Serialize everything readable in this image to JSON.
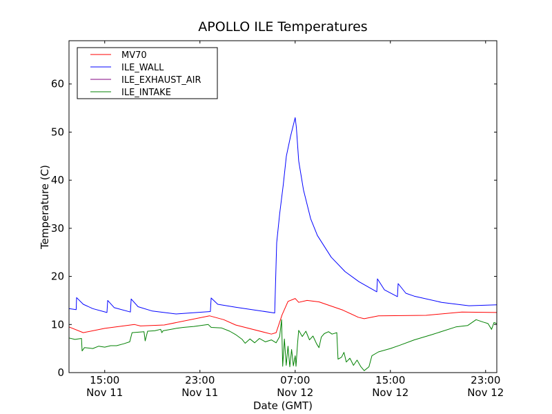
{
  "chart_data": {
    "type": "line",
    "title": "APOLLO ILE Temperatures",
    "xlabel": "Date (GMT)",
    "ylabel": "Temperature (C)",
    "x_units": "hours since Nov 11 00:00 GMT",
    "xlim": [
      12.0,
      47.94
    ],
    "ylim": [
      0,
      69
    ],
    "grid": false,
    "legend_placement": "top-left",
    "xticks": [
      {
        "value": 15,
        "label1": "15:00",
        "label2": "Nov 11"
      },
      {
        "value": 23,
        "label1": "23:00",
        "label2": "Nov 11"
      },
      {
        "value": 31,
        "label1": "07:00",
        "label2": "Nov 12"
      },
      {
        "value": 39,
        "label1": "15:00",
        "label2": "Nov 12"
      },
      {
        "value": 47,
        "label1": "23:00",
        "label2": "Nov 12"
      }
    ],
    "yticks": [
      {
        "value": 0,
        "label": "0"
      },
      {
        "value": 10,
        "label": "10"
      },
      {
        "value": 20,
        "label": "20"
      },
      {
        "value": 30,
        "label": "30"
      },
      {
        "value": 40,
        "label": "40"
      },
      {
        "value": 50,
        "label": "50"
      },
      {
        "value": 60,
        "label": "60"
      }
    ],
    "series": [
      {
        "name": "MV70",
        "color": "#ff0000",
        "points": [
          [
            12.0,
            9.5
          ],
          [
            13.2,
            8.3
          ],
          [
            15,
            9.2
          ],
          [
            17.5,
            10.0
          ],
          [
            18,
            9.7
          ],
          [
            20,
            9.9
          ],
          [
            23.8,
            11.8
          ],
          [
            25,
            11.0
          ],
          [
            26,
            9.9
          ],
          [
            29,
            8.0
          ],
          [
            29.4,
            8.3
          ],
          [
            29.9,
            12.0
          ],
          [
            30.4,
            14.8
          ],
          [
            31,
            15.4
          ],
          [
            31.3,
            14.6
          ],
          [
            32,
            15.0
          ],
          [
            33,
            14.7
          ],
          [
            35,
            13.0
          ],
          [
            36.3,
            11.5
          ],
          [
            36.8,
            11.2
          ],
          [
            38,
            11.8
          ],
          [
            42,
            11.9
          ],
          [
            45,
            12.6
          ],
          [
            47.94,
            12.5
          ]
        ]
      },
      {
        "name": "ILE_WALL",
        "color": "#0000ff",
        "points": [
          [
            12.0,
            13.3
          ],
          [
            12.6,
            13.1
          ],
          [
            12.64,
            15.6
          ],
          [
            13.2,
            14.2
          ],
          [
            14,
            13.3
          ],
          [
            15.19,
            12.5
          ],
          [
            15.25,
            15.0
          ],
          [
            15.8,
            13.5
          ],
          [
            17.16,
            12.6
          ],
          [
            17.22,
            15.3
          ],
          [
            17.8,
            13.7
          ],
          [
            19,
            12.8
          ],
          [
            21,
            12.2
          ],
          [
            23.88,
            12.7
          ],
          [
            23.94,
            15.5
          ],
          [
            24.5,
            14.2
          ],
          [
            26,
            13.6
          ],
          [
            29.28,
            12.4
          ],
          [
            29.45,
            27
          ],
          [
            29.7,
            33
          ],
          [
            30.0,
            39
          ],
          [
            30.26,
            45
          ],
          [
            30.6,
            49
          ],
          [
            31.0,
            53
          ],
          [
            31.1,
            51
          ],
          [
            31.3,
            44
          ],
          [
            31.7,
            38
          ],
          [
            32.3,
            32
          ],
          [
            32.87,
            28.5
          ],
          [
            34.03,
            24
          ],
          [
            35.19,
            21
          ],
          [
            36.35,
            18.9
          ],
          [
            37.86,
            16.8
          ],
          [
            37.91,
            19.5
          ],
          [
            38.5,
            17.2
          ],
          [
            39.59,
            15.8
          ],
          [
            39.65,
            18.5
          ],
          [
            40.3,
            16.5
          ],
          [
            41,
            15.9
          ],
          [
            43.3,
            14.6
          ],
          [
            45.6,
            13.9
          ],
          [
            47.94,
            14.1
          ]
        ]
      },
      {
        "name": "ILE_EXHAUST_AIR",
        "color": "#800080",
        "points": []
      },
      {
        "name": "ILE_INTAKE",
        "color": "#008000",
        "points": [
          [
            12.0,
            7.2
          ],
          [
            12.5,
            6.9
          ],
          [
            13.05,
            7.1
          ],
          [
            13.1,
            4.5
          ],
          [
            13.3,
            5.2
          ],
          [
            14,
            5.0
          ],
          [
            14.5,
            5.5
          ],
          [
            15,
            5.3
          ],
          [
            15.5,
            5.6
          ],
          [
            16,
            5.6
          ],
          [
            16.6,
            6.0
          ],
          [
            17.1,
            6.4
          ],
          [
            17.3,
            8.3
          ],
          [
            18.3,
            8.5
          ],
          [
            18.4,
            6.6
          ],
          [
            18.6,
            8.6
          ],
          [
            19.2,
            8.7
          ],
          [
            19.7,
            9.0
          ],
          [
            19.8,
            8.3
          ],
          [
            19.9,
            8.7
          ],
          [
            21,
            9.2
          ],
          [
            21.6,
            9.4
          ],
          [
            22.5,
            9.6
          ],
          [
            23.7,
            10.0
          ],
          [
            23.95,
            9.4
          ],
          [
            24.8,
            9.3
          ],
          [
            25.5,
            8.6
          ],
          [
            26.0,
            7.9
          ],
          [
            26.55,
            6.9
          ],
          [
            26.8,
            6.1
          ],
          [
            27.2,
            7.0
          ],
          [
            27.6,
            6.2
          ],
          [
            28.0,
            7.1
          ],
          [
            28.5,
            6.4
          ],
          [
            29.0,
            6.8
          ],
          [
            29.4,
            6.2
          ],
          [
            29.7,
            7.5
          ],
          [
            29.86,
            11.0
          ],
          [
            29.95,
            1.3
          ],
          [
            30.1,
            7.0
          ],
          [
            30.25,
            1.5
          ],
          [
            30.4,
            5.5
          ],
          [
            30.55,
            1.2
          ],
          [
            30.7,
            4.8
          ],
          [
            30.85,
            1.4
          ],
          [
            31.0,
            3.5
          ],
          [
            31.07,
            1.3
          ],
          [
            31.2,
            6.0
          ],
          [
            31.3,
            8.8
          ],
          [
            31.6,
            7.5
          ],
          [
            31.9,
            8.6
          ],
          [
            32.2,
            6.8
          ],
          [
            32.5,
            7.6
          ],
          [
            32.8,
            6.0
          ],
          [
            33.0,
            5.2
          ],
          [
            33.2,
            7.4
          ],
          [
            33.45,
            8.1
          ],
          [
            33.8,
            8.5
          ],
          [
            34.1,
            8.0
          ],
          [
            34.5,
            8.3
          ],
          [
            34.6,
            2.8
          ],
          [
            34.9,
            3.2
          ],
          [
            35.1,
            4.2
          ],
          [
            35.3,
            2.2
          ],
          [
            35.6,
            3.0
          ],
          [
            35.9,
            1.5
          ],
          [
            36.2,
            2.6
          ],
          [
            36.5,
            1.3
          ],
          [
            36.8,
            0.4
          ],
          [
            37.2,
            1.2
          ],
          [
            37.45,
            3.5
          ],
          [
            38,
            4.3
          ],
          [
            39,
            5.0
          ],
          [
            39.8,
            5.7
          ],
          [
            41,
            6.8
          ],
          [
            42.5,
            7.9
          ],
          [
            44.5,
            9.5
          ],
          [
            45.5,
            9.8
          ],
          [
            46.2,
            11.0
          ],
          [
            46.8,
            10.5
          ],
          [
            47.2,
            10.2
          ],
          [
            47.5,
            9.0
          ],
          [
            47.7,
            10.4
          ],
          [
            47.94,
            10.2
          ]
        ]
      }
    ]
  }
}
